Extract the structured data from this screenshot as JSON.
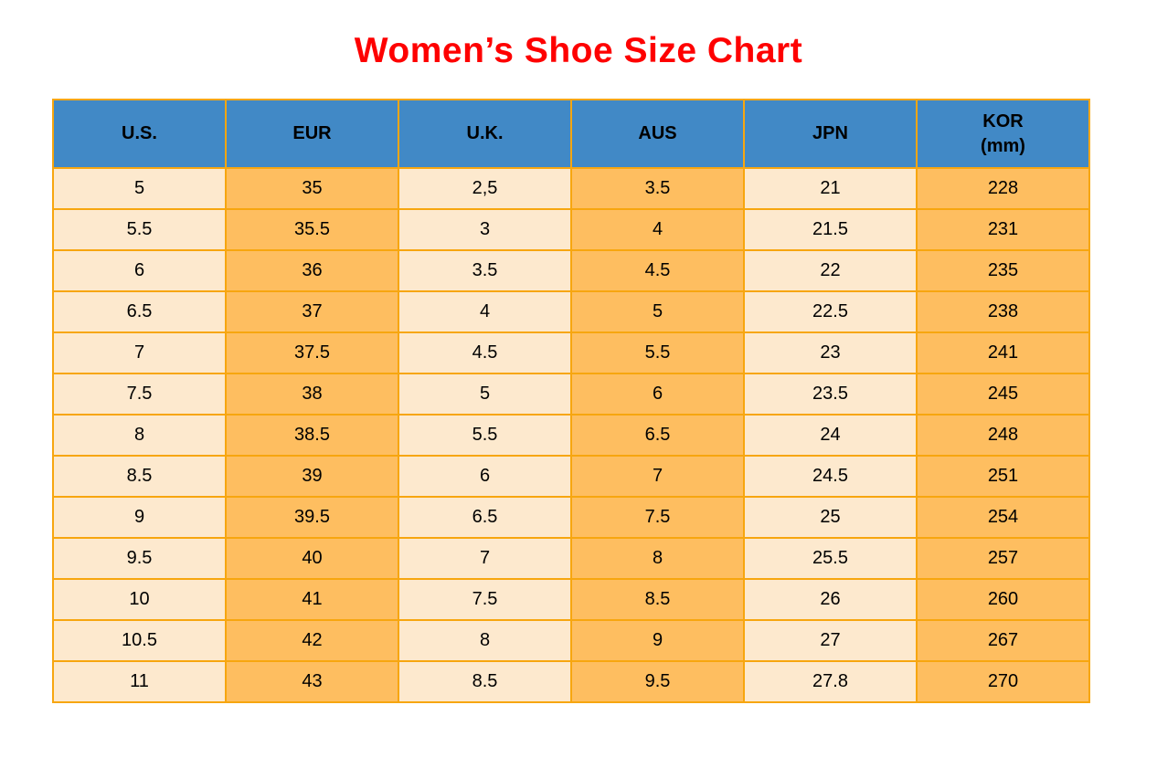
{
  "page": {
    "title": "Women’s Shoe Size Chart"
  },
  "colors": {
    "title_red": "#FE0000",
    "header_blue": "#4189C6",
    "border_orange": "#F7A60F",
    "cell_cream": "#FDE9CE",
    "cell_orange": "#FEBE60",
    "text_black": "#000000"
  },
  "table": {
    "columns": [
      {
        "name": "us",
        "label": "U.S.",
        "sublabel": ""
      },
      {
        "name": "eur",
        "label": "EUR",
        "sublabel": ""
      },
      {
        "name": "uk",
        "label": "U.K.",
        "sublabel": ""
      },
      {
        "name": "aus",
        "label": "AUS",
        "sublabel": ""
      },
      {
        "name": "jpn",
        "label": "JPN",
        "sublabel": ""
      },
      {
        "name": "kor",
        "label": "KOR",
        "sublabel": "(mm)"
      }
    ],
    "rows": [
      [
        "5",
        "35",
        "2,5",
        "3.5",
        "21",
        "228"
      ],
      [
        "5.5",
        "35.5",
        "3",
        "4",
        "21.5",
        "231"
      ],
      [
        "6",
        "36",
        "3.5",
        "4.5",
        "22",
        "235"
      ],
      [
        "6.5",
        "37",
        "4",
        "5",
        "22.5",
        "238"
      ],
      [
        "7",
        "37.5",
        "4.5",
        "5.5",
        "23",
        "241"
      ],
      [
        "7.5",
        "38",
        "5",
        "6",
        "23.5",
        "245"
      ],
      [
        "8",
        "38.5",
        "5.5",
        "6.5",
        "24",
        "248"
      ],
      [
        "8.5",
        "39",
        "6",
        "7",
        "24.5",
        "251"
      ],
      [
        "9",
        "39.5",
        "6.5",
        "7.5",
        "25",
        "254"
      ],
      [
        "9.5",
        "40",
        "7",
        "8",
        "25.5",
        "257"
      ],
      [
        "10",
        "41",
        "7.5",
        "8.5",
        "26",
        "260"
      ],
      [
        "10.5",
        "42",
        "8",
        "9",
        "27",
        "267"
      ],
      [
        "11",
        "43",
        "8.5",
        "9.5",
        "27.8",
        "270"
      ]
    ]
  },
  "chart_data": {
    "type": "table",
    "title": "Women’s Shoe Size Chart",
    "columns": [
      "U.S.",
      "EUR",
      "U.K.",
      "AUS",
      "JPN",
      "KOR (mm)"
    ],
    "rows": [
      [
        "5",
        "35",
        "2,5",
        "3.5",
        "21",
        "228"
      ],
      [
        "5.5",
        "35.5",
        "3",
        "4",
        "21.5",
        "231"
      ],
      [
        "6",
        "36",
        "3.5",
        "4.5",
        "22",
        "235"
      ],
      [
        "6.5",
        "37",
        "4",
        "5",
        "22.5",
        "238"
      ],
      [
        "7",
        "37.5",
        "4.5",
        "5.5",
        "23",
        "241"
      ],
      [
        "7.5",
        "38",
        "5",
        "6",
        "23.5",
        "245"
      ],
      [
        "8",
        "38.5",
        "5.5",
        "6.5",
        "24",
        "248"
      ],
      [
        "8.5",
        "39",
        "6",
        "7",
        "24.5",
        "251"
      ],
      [
        "9",
        "39.5",
        "6.5",
        "7.5",
        "25",
        "254"
      ],
      [
        "9.5",
        "40",
        "7",
        "8",
        "25.5",
        "257"
      ],
      [
        "10",
        "41",
        "7.5",
        "8.5",
        "26",
        "260"
      ],
      [
        "10.5",
        "42",
        "8",
        "9",
        "27",
        "267"
      ],
      [
        "11",
        "43",
        "8.5",
        "9.5",
        "27.8",
        "270"
      ]
    ],
    "layout": {
      "header_background": "#4189C6",
      "column_stripes": [
        "#FDE9CE",
        "#FEBE60"
      ],
      "grid": true
    }
  }
}
